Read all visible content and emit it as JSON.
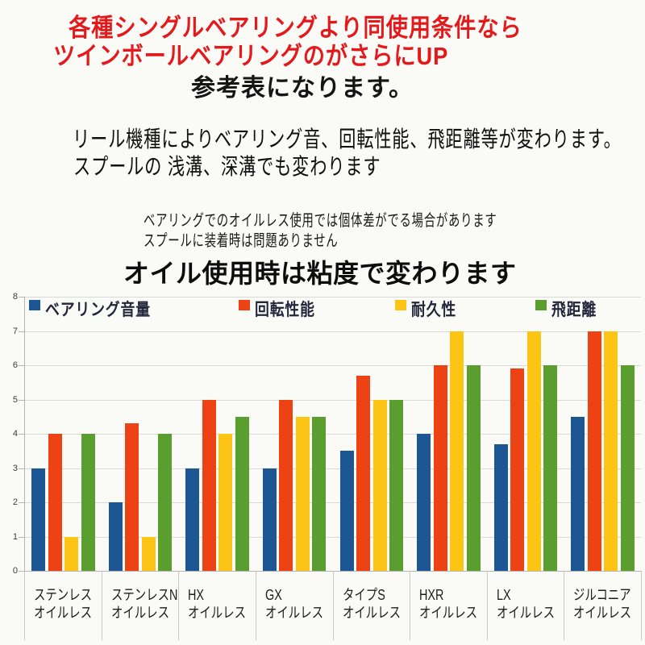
{
  "header": {
    "red_line1": "各種シングルベアリングより同使用条件なら",
    "red_line2": "ツインボールベアリングのがさらにUP",
    "subtitle": "参考表になります。",
    "desc_line1": "リール機種によりベアリング音、回転性能、飛距離等が変わります。",
    "desc_line2": "スプールの 浅溝、深溝でも変わります",
    "note_line1": "ベアリングでのオイルレス使用では個体差がでる場合があります",
    "note_line2": "スプールに装着時は問題ありません",
    "oil_note": "オイル使用時は粘度で変わります"
  },
  "colors": {
    "title_red": "#e3191c",
    "grid": "#d9d9d9",
    "axis": "#b3b3b3",
    "series_blue": "#1d5793",
    "series_red": "#ed4214",
    "series_yellow": "#fcc516",
    "series_green": "#5a9e30"
  },
  "chart_data": {
    "type": "bar",
    "title": "",
    "xlabel": "",
    "ylabel": "",
    "ylim": [
      0,
      8
    ],
    "yticks": [
      0,
      1,
      2,
      3,
      4,
      5,
      6,
      7,
      8
    ],
    "grid": true,
    "legend_position": "top",
    "categories": [
      {
        "line1": "ステンレス",
        "line2": "オイルレス"
      },
      {
        "line1": "ステンレスN",
        "line2": "オイルレス"
      },
      {
        "line1": "HX",
        "line2": "オイルレス"
      },
      {
        "line1": "GX",
        "line2": "オイルレス"
      },
      {
        "line1": "タイプS",
        "line2": "オイルレス"
      },
      {
        "line1": "HXR",
        "line2": "オイルレス"
      },
      {
        "line1": "LX",
        "line2": "オイルレス"
      },
      {
        "line1": "ジルコニア",
        "line2": "オイルレス"
      }
    ],
    "series": [
      {
        "name": "ベアリング音量",
        "color": "#1d5793",
        "values": [
          3,
          2,
          3,
          3,
          3.5,
          4,
          3.7,
          4.5
        ]
      },
      {
        "name": "回転性能",
        "color": "#ed4214",
        "values": [
          4,
          4.3,
          5,
          5,
          5.7,
          6,
          5.9,
          7
        ]
      },
      {
        "name": "耐久性",
        "color": "#fcc516",
        "values": [
          1,
          1,
          4,
          4.5,
          5,
          7,
          7,
          7
        ]
      },
      {
        "name": "飛距離",
        "color": "#5a9e30",
        "values": [
          4,
          4,
          4.5,
          4.5,
          5,
          6,
          6,
          6
        ]
      }
    ]
  }
}
